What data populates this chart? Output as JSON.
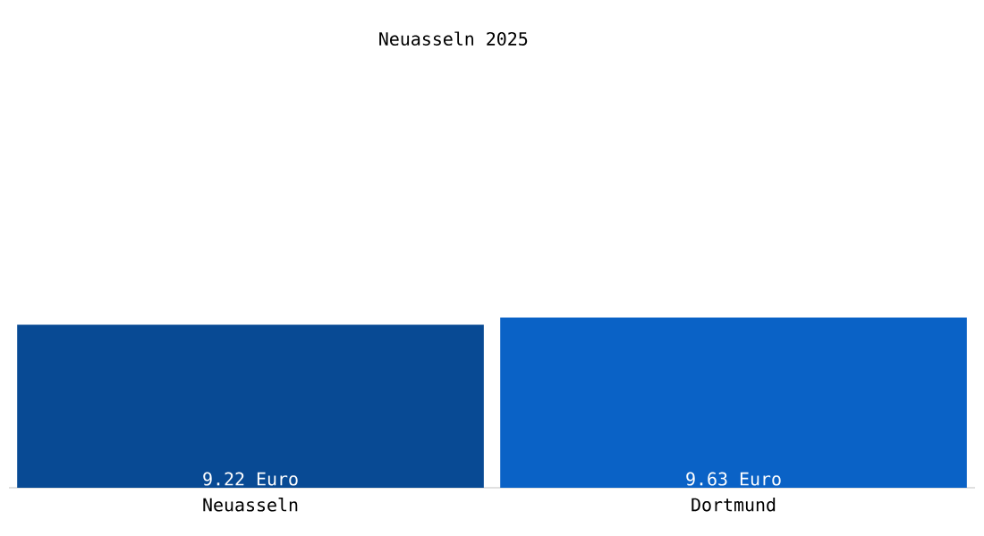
{
  "chart_data": {
    "type": "bar",
    "title": "Neuasseln 2025",
    "categories": [
      "Neuasseln",
      "Dortmund"
    ],
    "values": [
      9.22,
      9.63
    ],
    "colors": [
      "#084a94",
      "#0a62c6"
    ],
    "value_labels": [
      "9.22 Euro",
      "9.63 Euro"
    ],
    "data_labels": false
  }
}
